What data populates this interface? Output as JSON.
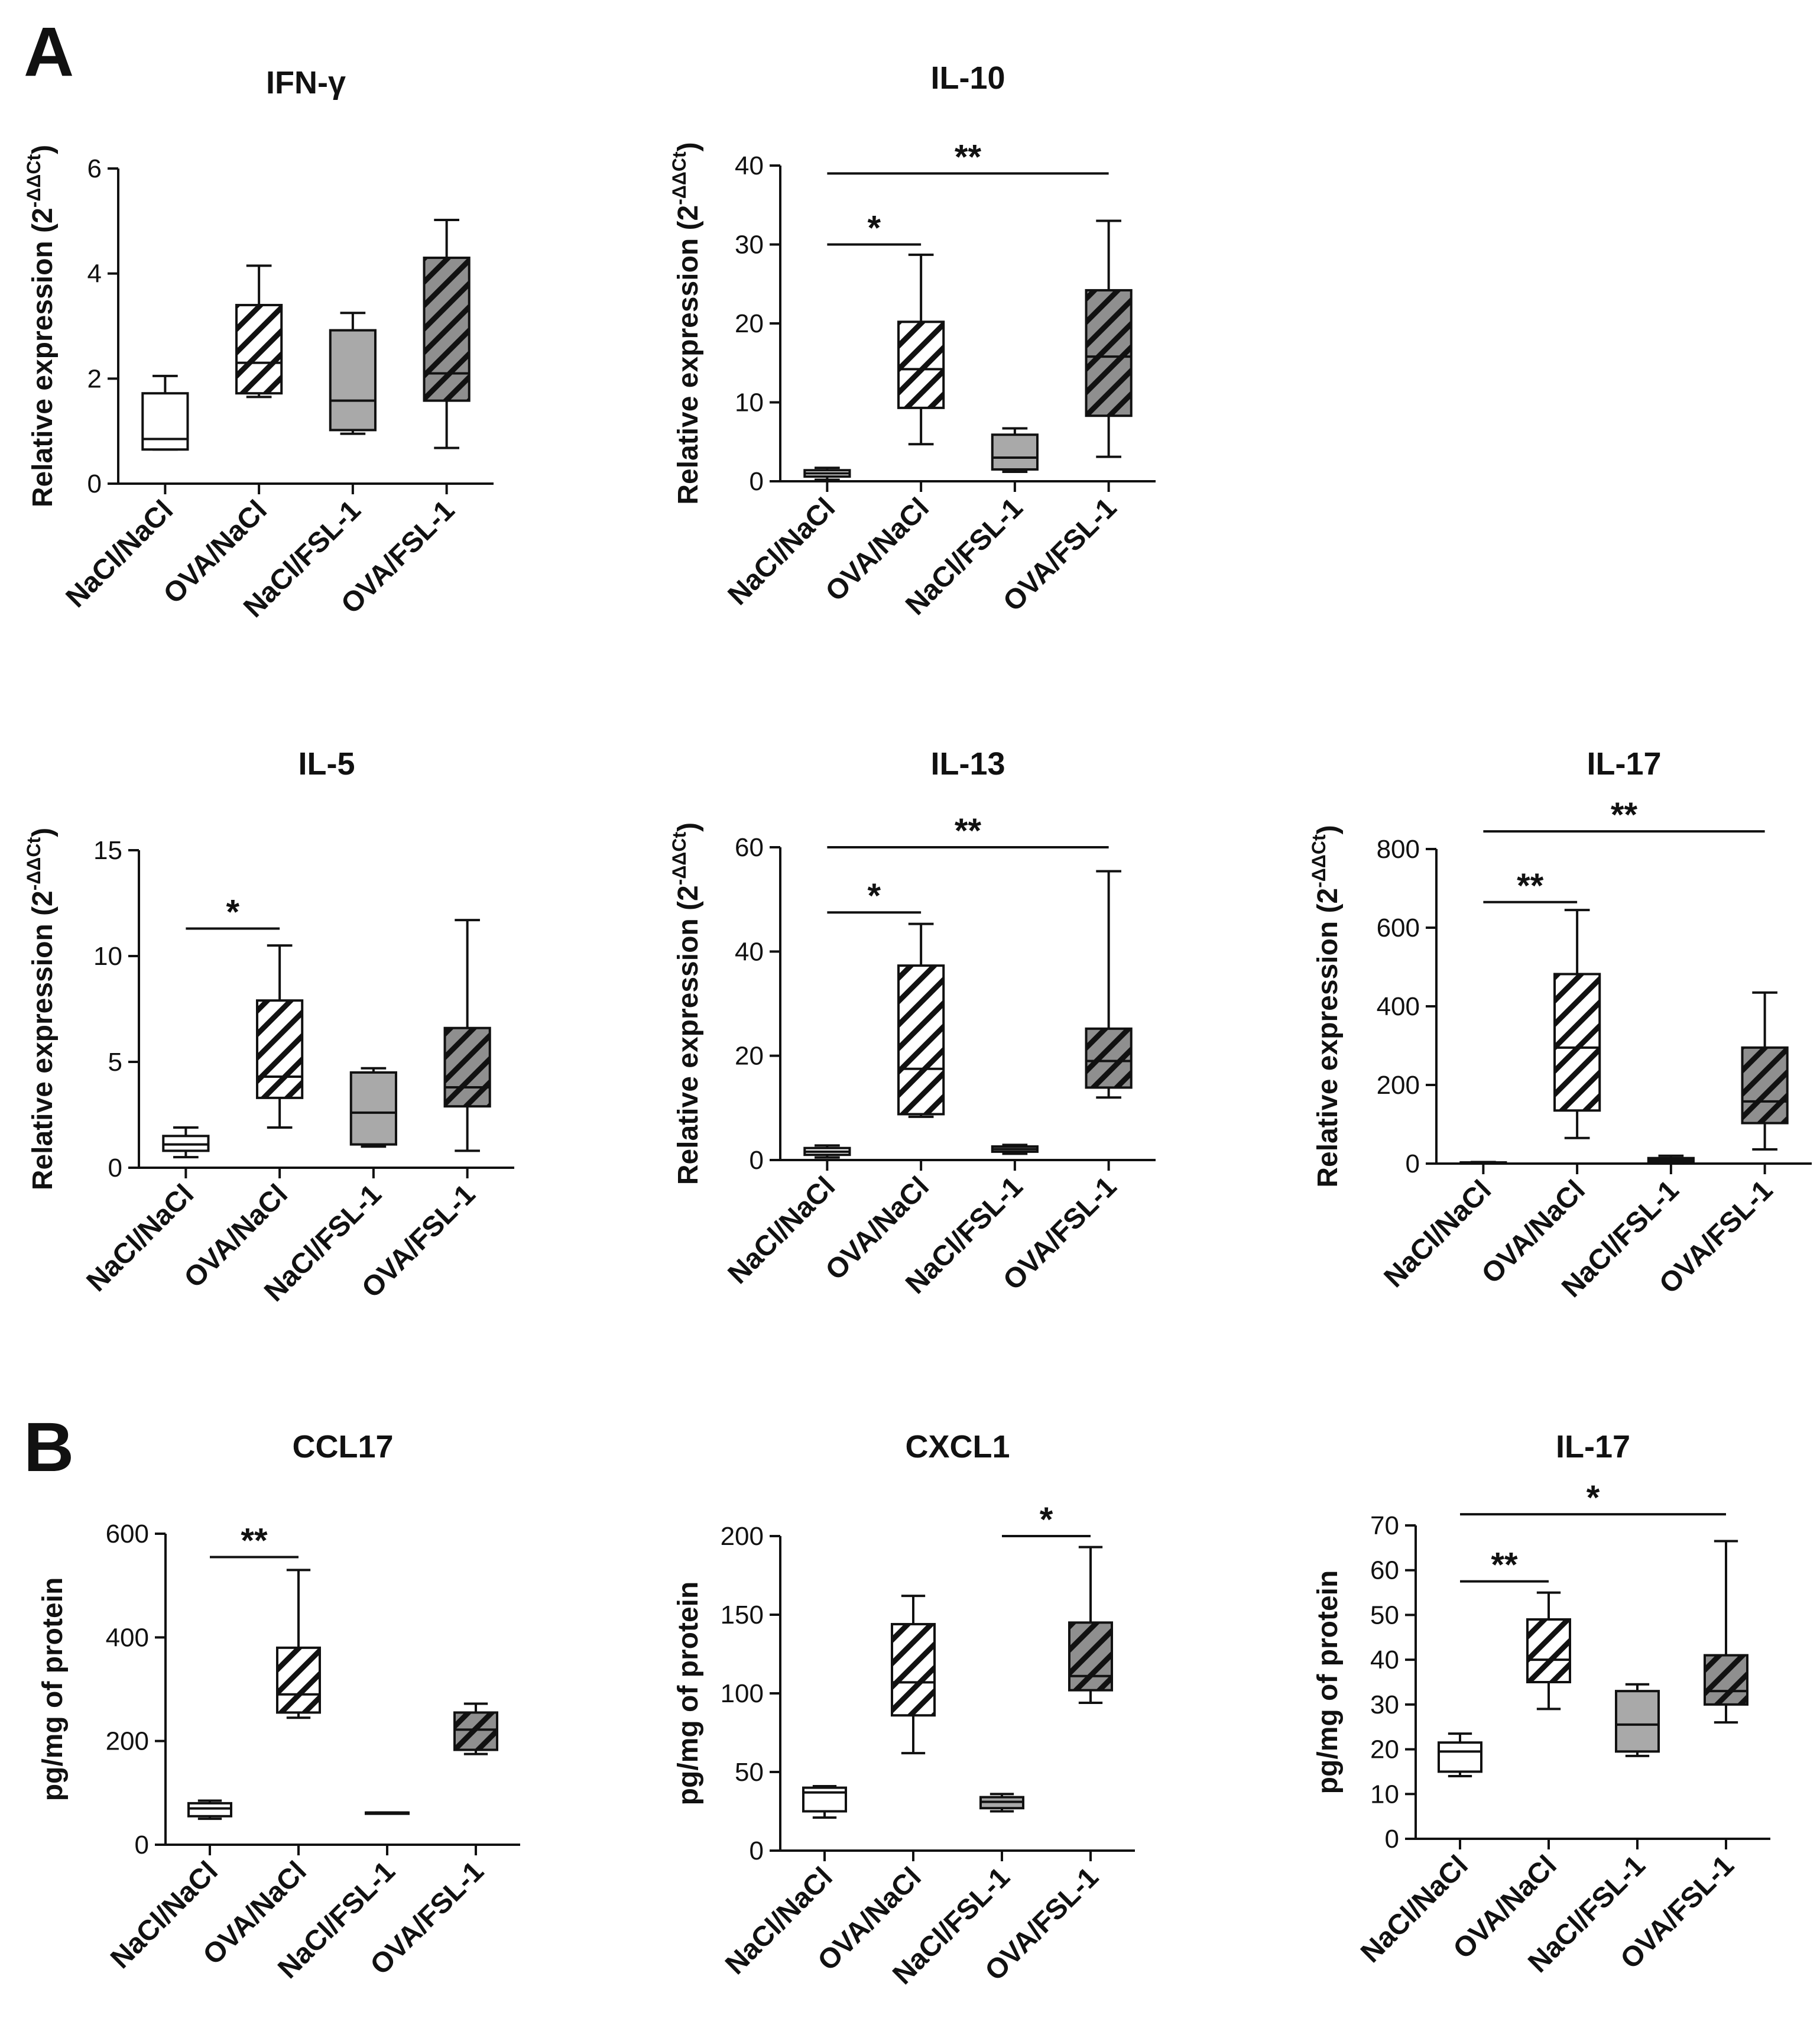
{
  "panels": {
    "A": "A",
    "B": "B"
  },
  "colors": {
    "ink": "#111111",
    "white_fill": "#ffffff",
    "gray_fill": "#a9a9a9",
    "hatch_bg_light": "#ffffff",
    "hatch_bg_dark": "#8f8f8f"
  },
  "chart_data": [
    {
      "id": "ifng",
      "type": "box",
      "title": "IFN-γ",
      "ylabel": "Relative expression (2",
      "ylabel_sup": "-ΔΔCt",
      "ylabel_close": ")",
      "ylim": [
        0,
        6
      ],
      "yticks": [
        0,
        2,
        4,
        6
      ],
      "categories": [
        "NaCl/NaCl",
        "OVA/NaCl",
        "NaCl/FSL-1",
        "OVA/FSL-1"
      ],
      "boxes": [
        {
          "min": 0.65,
          "q1": 0.65,
          "median": 0.85,
          "q3": 1.72,
          "max": 2.05,
          "fill": "white"
        },
        {
          "min": 1.65,
          "q1": 1.72,
          "median": 2.3,
          "q3": 3.4,
          "max": 4.15,
          "fill": "hatch-light"
        },
        {
          "min": 0.95,
          "q1": 1.02,
          "median": 1.58,
          "q3": 2.92,
          "max": 3.25,
          "fill": "gray"
        },
        {
          "min": 0.68,
          "q1": 1.58,
          "median": 2.1,
          "q3": 4.3,
          "max": 5.02,
          "fill": "hatch-dark"
        }
      ],
      "significance": []
    },
    {
      "id": "il10",
      "type": "box",
      "title": "IL-10",
      "ylabel": "Relative expression (2",
      "ylabel_sup": "-ΔΔCt",
      "ylabel_close": ")",
      "ylim": [
        0,
        40
      ],
      "yticks": [
        0,
        10,
        20,
        30,
        40
      ],
      "categories": [
        "NaCl/NaCl",
        "OVA/NaCl",
        "NaCl/FSL-1",
        "OVA/FSL-1"
      ],
      "boxes": [
        {
          "min": 0.2,
          "q1": 0.6,
          "median": 1.0,
          "q3": 1.4,
          "max": 1.7,
          "fill": "white"
        },
        {
          "min": 4.7,
          "q1": 9.3,
          "median": 14.2,
          "q3": 20.2,
          "max": 28.7,
          "fill": "hatch-light"
        },
        {
          "min": 1.2,
          "q1": 1.5,
          "median": 3.0,
          "q3": 5.9,
          "max": 6.7,
          "fill": "gray"
        },
        {
          "min": 3.1,
          "q1": 8.3,
          "median": 15.8,
          "q3": 24.2,
          "max": 33.0,
          "fill": "hatch-dark"
        }
      ],
      "significance": [
        {
          "from": 0,
          "to": 1,
          "y": 30,
          "label": "*"
        },
        {
          "from": 0,
          "to": 3,
          "y": 39,
          "label": "**"
        }
      ]
    },
    {
      "id": "il5",
      "type": "box",
      "title": "IL-5",
      "ylabel": "Relative expression (2",
      "ylabel_sup": "-ΔΔCt",
      "ylabel_close": ")",
      "ylim": [
        0,
        15
      ],
      "yticks": [
        0,
        5,
        10,
        15
      ],
      "categories": [
        "NaCl/NaCl",
        "OVA/NaCl",
        "NaCl/FSL-1",
        "OVA/FSL-1"
      ],
      "boxes": [
        {
          "min": 0.5,
          "q1": 0.8,
          "median": 1.1,
          "q3": 1.5,
          "max": 1.9,
          "fill": "white"
        },
        {
          "min": 1.9,
          "q1": 3.3,
          "median": 4.3,
          "q3": 7.9,
          "max": 10.5,
          "fill": "hatch-light"
        },
        {
          "min": 1.0,
          "q1": 1.1,
          "median": 2.6,
          "q3": 4.5,
          "max": 4.7,
          "fill": "gray"
        },
        {
          "min": 0.8,
          "q1": 2.9,
          "median": 3.8,
          "q3": 6.6,
          "max": 11.7,
          "fill": "hatch-dark"
        }
      ],
      "significance": [
        {
          "from": 0,
          "to": 1,
          "y": 11.3,
          "label": "*"
        }
      ]
    },
    {
      "id": "il13",
      "type": "box",
      "title": "IL-13",
      "ylabel": "Relative expression (2",
      "ylabel_sup": "-ΔΔCt",
      "ylabel_close": ")",
      "ylim": [
        0,
        60
      ],
      "yticks": [
        0,
        20,
        40,
        60
      ],
      "categories": [
        "NaCl/NaCl",
        "OVA/NaCl",
        "NaCl/FSL-1",
        "OVA/FSL-1"
      ],
      "boxes": [
        {
          "min": 0.5,
          "q1": 1.0,
          "median": 1.6,
          "q3": 2.3,
          "max": 2.8,
          "fill": "white"
        },
        {
          "min": 8.3,
          "q1": 8.8,
          "median": 17.5,
          "q3": 37.3,
          "max": 45.3,
          "fill": "hatch-light"
        },
        {
          "min": 1.2,
          "q1": 1.6,
          "median": 2.1,
          "q3": 2.6,
          "max": 2.9,
          "fill": "gray"
        },
        {
          "min": 12.0,
          "q1": 13.9,
          "median": 19.0,
          "q3": 25.2,
          "max": 55.4,
          "fill": "hatch-dark"
        }
      ],
      "significance": [
        {
          "from": 0,
          "to": 1,
          "y": 47.5,
          "label": "*"
        },
        {
          "from": 0,
          "to": 3,
          "y": 60,
          "label": "**"
        }
      ]
    },
    {
      "id": "il17a",
      "type": "box",
      "title": "IL-17",
      "ylabel": "Relative expression (2",
      "ylabel_sup": "-ΔΔCt",
      "ylabel_close": ")",
      "ylim": [
        0,
        800
      ],
      "yticks": [
        0,
        200,
        400,
        600,
        800
      ],
      "categories": [
        "NaCl/NaCl",
        "OVA/NaCl",
        "NaCl/FSL-1",
        "OVA/FSL-1"
      ],
      "boxes": [
        {
          "min": 0.5,
          "q1": 1,
          "median": 2,
          "q3": 3,
          "max": 4,
          "fill": "white"
        },
        {
          "min": 65,
          "q1": 135,
          "median": 295,
          "q3": 482,
          "max": 645,
          "fill": "hatch-light"
        },
        {
          "min": 2,
          "q1": 5,
          "median": 9,
          "q3": 14,
          "max": 20,
          "fill": "gray"
        },
        {
          "min": 36,
          "q1": 103,
          "median": 158,
          "q3": 295,
          "max": 435,
          "fill": "hatch-dark"
        }
      ],
      "significance": [
        {
          "from": 0,
          "to": 1,
          "y": 665,
          "label": "**"
        },
        {
          "from": 0,
          "to": 3,
          "y": 845,
          "label": "**"
        }
      ]
    },
    {
      "id": "ccl17",
      "type": "box",
      "title": "CCL17",
      "ylabel": "pg/mg of protein",
      "ylim": [
        0,
        600
      ],
      "yticks": [
        0,
        200,
        400,
        600
      ],
      "categories": [
        "NaCl/NaCl",
        "OVA/NaCl",
        "NaCl/FSL-1",
        "OVA/FSL-1"
      ],
      "boxes": [
        {
          "min": 50,
          "q1": 55,
          "median": 70,
          "q3": 80,
          "max": 85,
          "fill": "white"
        },
        {
          "min": 245,
          "q1": 255,
          "median": 290,
          "q3": 380,
          "max": 530,
          "fill": "hatch-light"
        },
        {
          "min": 62,
          "q1": 62,
          "median": 62,
          "q3": 62,
          "max": 62,
          "fill": "gray"
        },
        {
          "min": 175,
          "q1": 183,
          "median": 222,
          "q3": 255,
          "max": 272,
          "fill": "hatch-dark"
        }
      ],
      "significance": [
        {
          "from": 0,
          "to": 1,
          "y": 555,
          "label": "**"
        }
      ]
    },
    {
      "id": "cxcl1",
      "type": "box",
      "title": "CXCL1",
      "ylabel": "pg/mg of protein",
      "ylim": [
        0,
        200
      ],
      "yticks": [
        0,
        50,
        100,
        150,
        200
      ],
      "categories": [
        "NaCl/NaCl",
        "OVA/NaCl",
        "NaCl/FSL-1",
        "OVA/FSL-1"
      ],
      "boxes": [
        {
          "min": 21,
          "q1": 25,
          "median": 37,
          "q3": 40,
          "max": 41,
          "fill": "white"
        },
        {
          "min": 62,
          "q1": 86,
          "median": 107,
          "q3": 144,
          "max": 162,
          "fill": "hatch-light"
        },
        {
          "min": 25,
          "q1": 27,
          "median": 31,
          "q3": 34,
          "max": 36,
          "fill": "gray"
        },
        {
          "min": 94,
          "q1": 102,
          "median": 111,
          "q3": 145,
          "max": 193,
          "fill": "hatch-dark"
        }
      ],
      "significance": [
        {
          "from": 2,
          "to": 3,
          "y": 200,
          "label": "*"
        }
      ]
    },
    {
      "id": "il17b",
      "type": "box",
      "title": "IL-17",
      "ylabel": "pg/mg of protein",
      "ylim": [
        0,
        70
      ],
      "yticks": [
        0,
        10,
        20,
        30,
        40,
        50,
        60,
        70
      ],
      "categories": [
        "NaCl/NaCl",
        "OVA/NaCl",
        "NaCl/FSL-1",
        "OVA/FSL-1"
      ],
      "boxes": [
        {
          "min": 14,
          "q1": 15,
          "median": 19.5,
          "q3": 21.5,
          "max": 23.5,
          "fill": "white"
        },
        {
          "min": 29,
          "q1": 35,
          "median": 40,
          "q3": 49,
          "max": 55,
          "fill": "hatch-light"
        },
        {
          "min": 18.5,
          "q1": 19.5,
          "median": 25.5,
          "q3": 33,
          "max": 34.5,
          "fill": "gray"
        },
        {
          "min": 26,
          "q1": 30,
          "median": 33,
          "q3": 41,
          "max": 66.5,
          "fill": "hatch-dark"
        }
      ],
      "significance": [
        {
          "from": 0,
          "to": 1,
          "y": 57.5,
          "label": "**"
        },
        {
          "from": 0,
          "to": 3,
          "y": 72.5,
          "label": "*"
        }
      ]
    }
  ]
}
